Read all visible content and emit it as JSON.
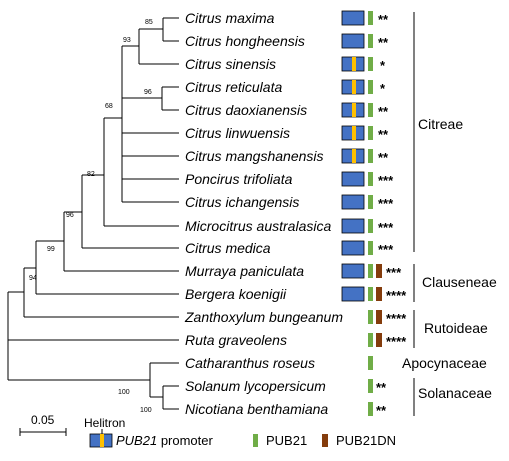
{
  "taxa": [
    {
      "name": "Citrus maxima",
      "helitron": false,
      "pub21dn": false,
      "significance": "**"
    },
    {
      "name": "Citrus hongheensis",
      "helitron": false,
      "pub21dn": false,
      "significance": "**"
    },
    {
      "name": "Citrus sinensis",
      "helitron": true,
      "pub21dn": false,
      "significance": "*"
    },
    {
      "name": "Citrus reticulata",
      "helitron": true,
      "pub21dn": false,
      "significance": "*"
    },
    {
      "name": "Citrus daoxianensis",
      "helitron": true,
      "pub21dn": false,
      "significance": "**"
    },
    {
      "name": "Citrus linwuensis",
      "helitron": true,
      "pub21dn": false,
      "significance": "**"
    },
    {
      "name": "Citrus mangshanensis",
      "helitron": true,
      "pub21dn": false,
      "significance": "**"
    },
    {
      "name": "Poncirus trifoliata",
      "helitron": false,
      "pub21dn": false,
      "significance": "***"
    },
    {
      "name": "Citrus ichangensis",
      "helitron": false,
      "pub21dn": false,
      "significance": "***"
    },
    {
      "name": "Microcitrus australasica",
      "helitron": false,
      "pub21dn": false,
      "significance": "***"
    },
    {
      "name": "Citrus medica",
      "helitron": false,
      "pub21dn": false,
      "significance": "***"
    },
    {
      "name": "Murraya paniculata",
      "helitron": false,
      "pub21dn": true,
      "significance": "***"
    },
    {
      "name": "Bergera koenigii",
      "helitron": false,
      "pub21dn": true,
      "significance": "****"
    },
    {
      "name": "Zanthoxylum bungeanum",
      "helitron": false,
      "pub21dn": true,
      "significance": "****",
      "no_promoter": true
    },
    {
      "name": "Ruta graveolens",
      "helitron": false,
      "pub21dn": true,
      "significance": "****",
      "no_promoter": true
    },
    {
      "name": "Catharanthus roseus",
      "helitron": false,
      "pub21dn": false,
      "significance": "",
      "no_promoter": true
    },
    {
      "name": "Solanum lycopersicum",
      "helitron": false,
      "pub21dn": false,
      "significance": "**",
      "no_promoter": true
    },
    {
      "name": "Nicotiana benthamiana",
      "helitron": false,
      "pub21dn": false,
      "significance": "**",
      "no_promoter": true
    }
  ],
  "bootstrap": [
    "85",
    "93",
    "96",
    "68",
    "82",
    "96",
    "99",
    "94",
    "100",
    "100"
  ],
  "groups": [
    "Citreae",
    "Clauseneae",
    "Rutoideae",
    "Apocynaceae",
    "Solanaceae"
  ],
  "scale_bar": "0.05",
  "legend": {
    "helitron": "Helitron",
    "promoter_italic": "PUB21",
    "promoter_rest": " promoter",
    "pub21": "PUB21",
    "pub21dn": "PUB21DN"
  },
  "colors": {
    "promoter": "#4472c4",
    "helitron": "#ffc000",
    "pub21": "#70ad47",
    "pub21dn": "#843c0c",
    "outline": "#000000"
  }
}
